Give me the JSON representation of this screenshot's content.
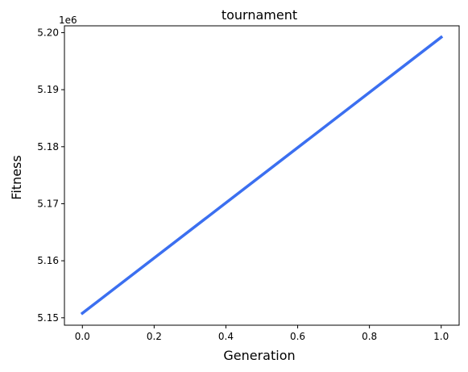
{
  "chart_data": {
    "type": "line",
    "title": "tournament",
    "xlabel": "Generation",
    "ylabel": "Fitness",
    "y_offset_label": "1e6",
    "xlim": [
      -0.05,
      1.05
    ],
    "ylim": [
      5.1487,
      5.2012
    ],
    "x_ticks": [
      0.0,
      0.2,
      0.4,
      0.6,
      0.8,
      1.0
    ],
    "x_tick_labels": [
      "0.0",
      "0.2",
      "0.4",
      "0.6",
      "0.8",
      "1.0"
    ],
    "y_ticks": [
      5.15,
      5.16,
      5.17,
      5.18,
      5.19,
      5.2
    ],
    "y_tick_labels": [
      "5.15",
      "5.16",
      "5.17",
      "5.18",
      "5.19",
      "5.20"
    ],
    "grid": false,
    "series": [
      {
        "x": [
          0,
          1
        ],
        "y": [
          5.1508,
          5.1992
        ],
        "color": "#3b6ff0"
      }
    ]
  }
}
